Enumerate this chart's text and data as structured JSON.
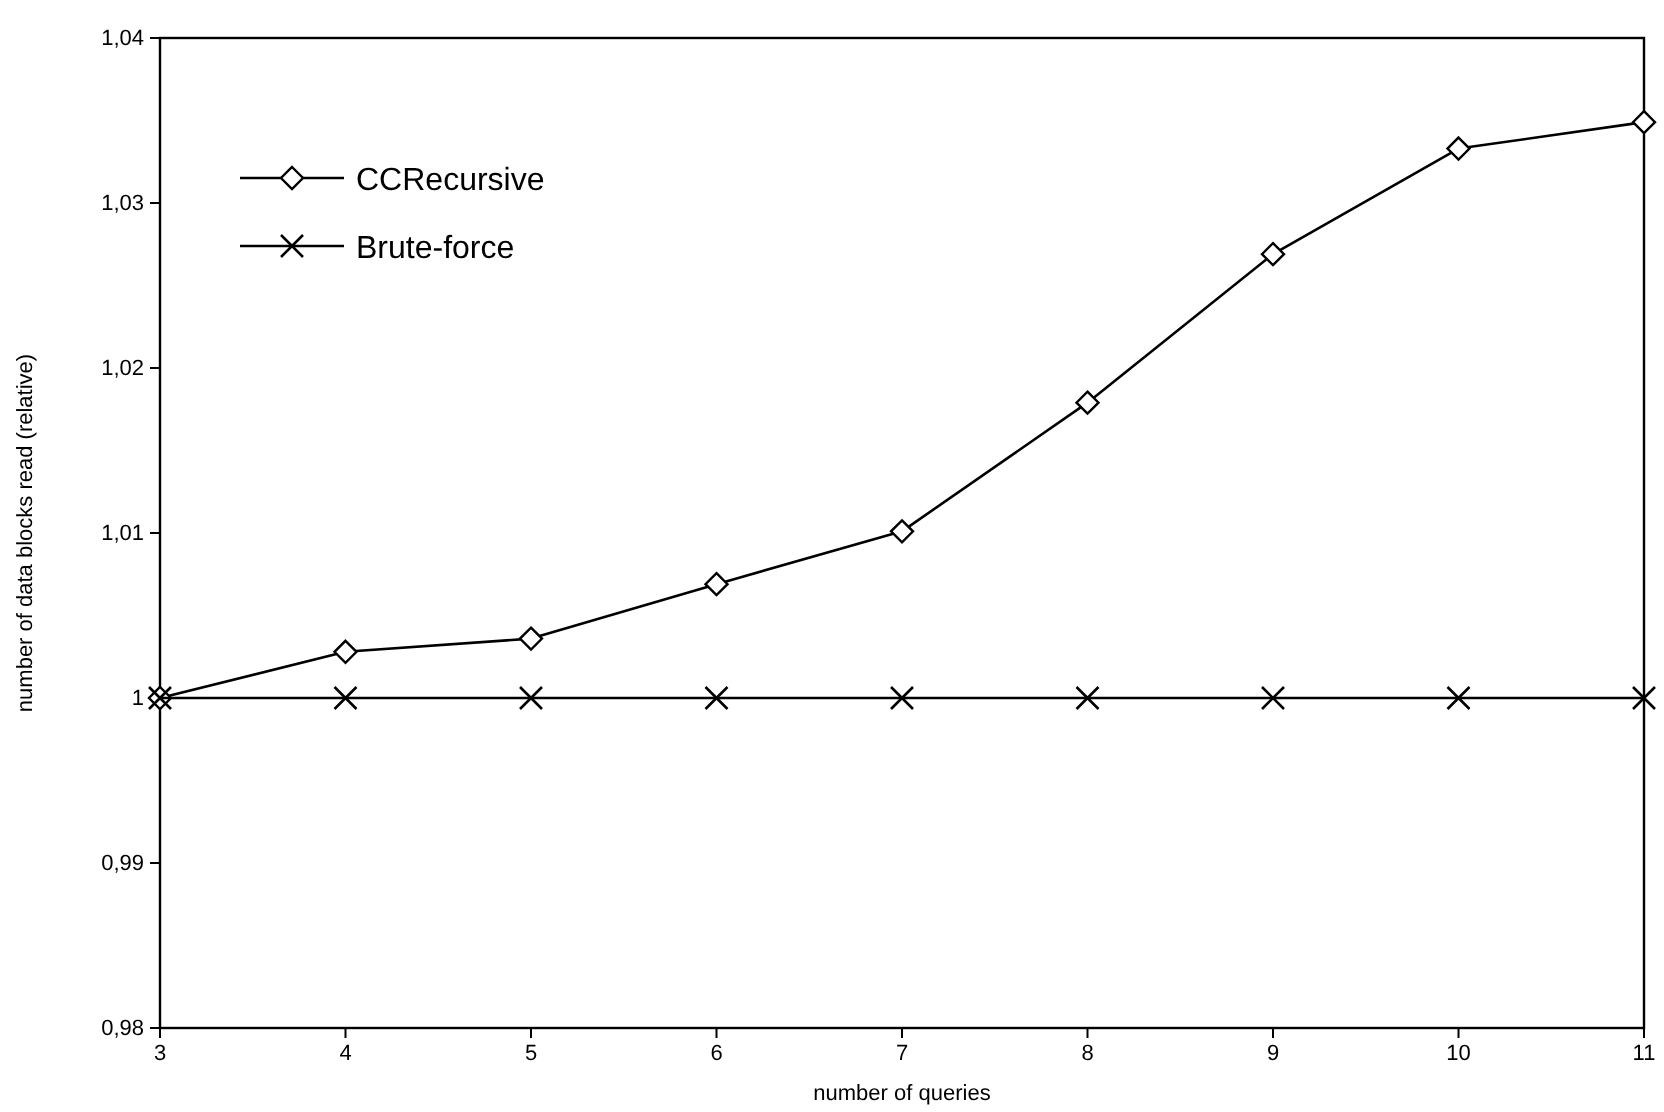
{
  "chart_data": {
    "type": "line",
    "xlabel": "number of  queries",
    "ylabel": "number of data blocks read (relative)",
    "x": [
      3,
      4,
      5,
      6,
      7,
      8,
      9,
      10,
      11
    ],
    "series": [
      {
        "name": "CCRecursive",
        "color": "#000000",
        "marker": "diamond",
        "values": [
          1.0,
          1.0028,
          1.0036,
          1.0069,
          1.0101,
          1.0179,
          1.0269,
          1.0333,
          1.0349
        ]
      },
      {
        "name": "Brute-force",
        "color": "#000000",
        "marker": "cross",
        "values": [
          1,
          1,
          1,
          1,
          1,
          1,
          1,
          1,
          1
        ]
      }
    ],
    "xlim": [
      3,
      11
    ],
    "xticks": [
      3,
      4,
      5,
      6,
      7,
      8,
      9,
      10,
      11
    ],
    "ylim": [
      0.98,
      1.04
    ],
    "yticks": [
      {
        "value": 0.98,
        "label": "0,98"
      },
      {
        "value": 0.99,
        "label": "0,99"
      },
      {
        "value": 1,
        "label": "1"
      },
      {
        "value": 1.01,
        "label": "1,01"
      },
      {
        "value": 1.02,
        "label": "1,02"
      },
      {
        "value": 1.03,
        "label": "1,03"
      },
      {
        "value": 1.04,
        "label": "1,04"
      }
    ],
    "grid": false,
    "legend": "top left",
    "line_style": "solid"
  }
}
